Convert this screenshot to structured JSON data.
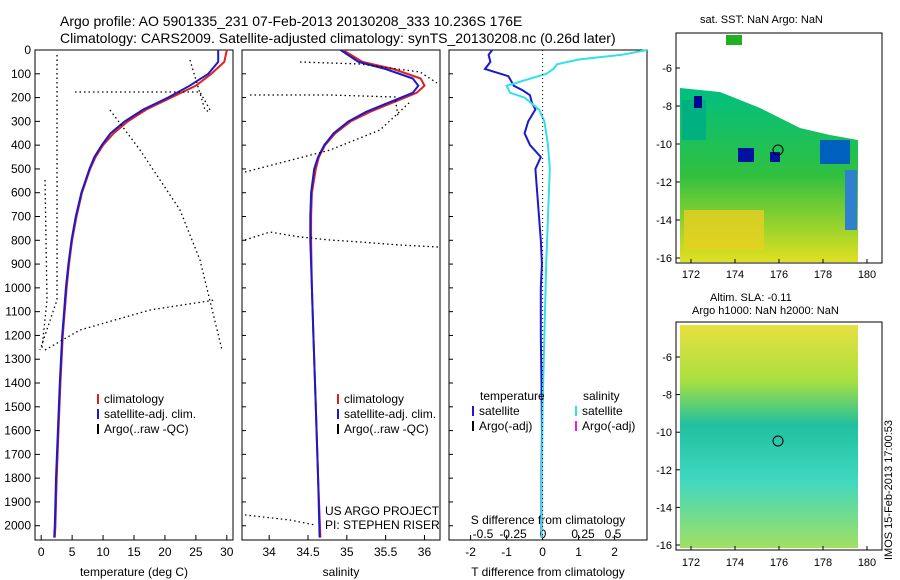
{
  "header": {
    "title_line1": "Argo profile: AO 5901335_231 07-Feb-2013 20130208_333 10.236S 176E",
    "title_line2": "Climatology: CARS2009. Satellite-adjusted climatology: synTS_20130208.nc (0.26d later)"
  },
  "map_top": {
    "title": "sat. SST: NaN Argo: NaN",
    "xticks": [
      "172",
      "174",
      "176",
      "178",
      "180"
    ],
    "yticks": [
      "-6",
      "-8",
      "-10",
      "-12",
      "-14",
      "-16"
    ]
  },
  "map_bottom": {
    "title1": "Altim. SLA: -0.11",
    "title2": "Argo h1000: NaN h2000: NaN",
    "xticks": [
      "172",
      "174",
      "176",
      "178",
      "180"
    ],
    "yticks": [
      "-6",
      "-8",
      "-10",
      "-12",
      "-14",
      "-16"
    ]
  },
  "stamp": "IMOS 15-Feb-2013 17:00:53",
  "project": {
    "line1": "US ARGO PROJECT",
    "line2": "PI: STEPHEN RISER"
  },
  "legends": {
    "temperature": [
      "climatology",
      "satellite-adj. clim.",
      "Argo(..raw -QC)"
    ],
    "salinity": [
      "climatology",
      "satellite-adj. clim.",
      "Argo(..raw -QC)"
    ],
    "diff_header_t": "temperature",
    "diff_header_s": "salinity",
    "diff_t": [
      "satellite",
      "Argo(-adj)"
    ],
    "diff_s": [
      "satellite",
      "Argo(-adj)"
    ]
  },
  "colors": {
    "climatology": "#e02020",
    "satellite": "#1a1acc",
    "argo": "#000000",
    "sal_sat": "#33e0e8",
    "sal_argo": "#e020e0"
  },
  "chart_data": [
    {
      "type": "line",
      "xlabel": "temperature (deg C)",
      "ylabel": "",
      "xlim": [
        -1,
        31
      ],
      "ylim": [
        2060,
        0
      ],
      "xticks": [
        0,
        5,
        10,
        15,
        20,
        25,
        30
      ],
      "yticks": [
        0,
        100,
        200,
        300,
        400,
        500,
        600,
        700,
        800,
        900,
        1000,
        1100,
        1200,
        1300,
        1400,
        1500,
        1600,
        1700,
        1800,
        1900,
        2000
      ],
      "series": [
        {
          "name": "climatology",
          "depth": [
            0,
            50,
            100,
            150,
            200,
            250,
            300,
            350,
            400,
            450,
            500,
            600,
            700,
            800,
            900,
            1000,
            1100,
            1200,
            1300,
            1400,
            1600,
            1800,
            2000,
            2050
          ],
          "values": [
            30,
            29.6,
            27.5,
            25,
            21,
            17,
            14,
            11.7,
            10,
            8.8,
            7.9,
            6.6,
            5.7,
            5,
            4.5,
            4.1,
            3.8,
            3.5,
            3.3,
            3.1,
            2.8,
            2.5,
            2.3,
            2.2
          ]
        },
        {
          "name": "satellite-adj. clim.",
          "depth": [
            0,
            50,
            100,
            150,
            200,
            250,
            300,
            350,
            400,
            450,
            500,
            600,
            700,
            800,
            900,
            1000,
            1100,
            1200,
            1300,
            1400,
            1600,
            1800,
            2000,
            2050
          ],
          "values": [
            28.6,
            28.6,
            27,
            24,
            20.5,
            16.5,
            13.5,
            11.2,
            9.8,
            8.6,
            7.8,
            6.5,
            5.6,
            4.9,
            4.4,
            4,
            3.7,
            3.4,
            3.2,
            3,
            2.7,
            2.4,
            2.2,
            2.1
          ]
        }
      ]
    },
    {
      "type": "line",
      "xlabel": "salinity",
      "ylabel": "",
      "xlim": [
        33.65,
        36.2
      ],
      "ylim": [
        2060,
        0
      ],
      "xticks": [
        34,
        34.5,
        35,
        35.5,
        36
      ],
      "series": [
        {
          "name": "climatology",
          "depth": [
            0,
            50,
            80,
            120,
            150,
            180,
            220,
            260,
            300,
            350,
            400,
            450,
            500,
            600,
            700,
            800,
            1000,
            1200,
            1500,
            1800,
            2050
          ],
          "values": [
            34.95,
            35.2,
            35.6,
            35.95,
            36.0,
            35.9,
            35.6,
            35.3,
            35.05,
            34.85,
            34.72,
            34.64,
            34.6,
            34.55,
            34.54,
            34.54,
            34.55,
            34.57,
            34.6,
            34.63,
            34.66
          ]
        },
        {
          "name": "satellite-adj. clim.",
          "depth": [
            0,
            50,
            80,
            120,
            150,
            180,
            220,
            260,
            300,
            350,
            400,
            450,
            500,
            600,
            700,
            800,
            1000,
            1200,
            1500,
            1800,
            2050
          ],
          "values": [
            34.92,
            35.15,
            35.5,
            35.85,
            35.92,
            35.85,
            35.55,
            35.25,
            35.02,
            34.83,
            34.71,
            34.63,
            34.58,
            34.54,
            34.53,
            34.53,
            34.55,
            34.57,
            34.6,
            34.63,
            34.65
          ]
        }
      ]
    },
    {
      "type": "line",
      "xlabel": "T difference from climatology",
      "title": "S difference from climatology",
      "xlim": [
        -2.6,
        2.9
      ],
      "ylim": [
        2060,
        0
      ],
      "xticks": [
        -2,
        -1,
        0,
        1,
        2
      ],
      "secondary_xticks": [
        "-0.5",
        "-0.25",
        "0",
        "0.25",
        "0.5"
      ],
      "series": [
        {
          "name": "temperature satellite",
          "depth": [
            0,
            20,
            50,
            80,
            110,
            150,
            170,
            190,
            220,
            250,
            300,
            350,
            400,
            450,
            500,
            600,
            700,
            800,
            900,
            1000,
            1200,
            1400,
            1600,
            1800,
            2050
          ],
          "values": [
            -1.4,
            -1.5,
            -1.45,
            -1.6,
            -0.95,
            -0.8,
            -0.55,
            -0.35,
            -0.3,
            -0.2,
            -0.4,
            -0.5,
            -0.35,
            -0.05,
            -0.2,
            -0.15,
            -0.1,
            -0.05,
            -0.02,
            -0.05,
            -0.05,
            -0.03,
            -0.02,
            -0.03,
            -0.03
          ]
        },
        {
          "name": "salinity satellite",
          "depth": [
            0,
            20,
            40,
            60,
            80,
            100,
            150,
            180,
            200,
            250,
            300,
            400,
            500,
            700,
            900,
            1200,
            1500,
            1800,
            2050
          ],
          "values": [
            2.9,
            2.2,
            1.0,
            0.4,
            0.3,
            0.1,
            -1.0,
            -0.9,
            -0.5,
            -0.1,
            0.05,
            0.15,
            0.2,
            0.15,
            0.1,
            0.05,
            0.0,
            -0.02,
            -0.02
          ]
        }
      ]
    }
  ]
}
